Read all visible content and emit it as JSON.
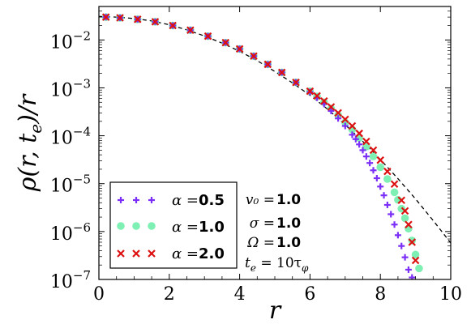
{
  "chart_data": {
    "type": "scatter",
    "title": "",
    "xlabel": "r",
    "ylabel": "ρ(r, t_e)/r",
    "xlim": [
      0,
      10
    ],
    "ylim": [
      1e-07,
      0.05
    ],
    "yscale": "log",
    "grid": false,
    "x_ticks": [
      "0",
      "2",
      "4",
      "6",
      "8",
      "10"
    ],
    "y_ticks": [
      {
        "base": "10",
        "exp": "−7"
      },
      {
        "base": "10",
        "exp": "−6"
      },
      {
        "base": "10",
        "exp": "−5"
      },
      {
        "base": "10",
        "exp": "−4"
      },
      {
        "base": "10",
        "exp": "−3"
      },
      {
        "base": "10",
        "exp": "−2"
      }
    ],
    "legend_position": "lower-left",
    "series": [
      {
        "name": "α =0.5",
        "alpha_symbol": "α =",
        "alpha_value": "0.5",
        "marker": "plus",
        "color": "#7b2ff7",
        "x": [
          0.2,
          0.6,
          1.1,
          1.6,
          2.1,
          2.6,
          3.1,
          3.6,
          4.0,
          4.4,
          4.8,
          5.2,
          5.6,
          6.0,
          6.2,
          6.4,
          6.6,
          6.8,
          7.0,
          7.2,
          7.3,
          7.4,
          7.5,
          7.6,
          7.7,
          7.8,
          7.9,
          8.0,
          8.1,
          8.2,
          8.3,
          8.4,
          8.5,
          8.6,
          8.7,
          8.8,
          8.9
        ],
        "y": [
          0.03,
          0.029,
          0.027,
          0.024,
          0.02,
          0.016,
          0.012,
          0.0088,
          0.0065,
          0.0046,
          0.0031,
          0.0021,
          0.0013,
          0.00082,
          0.00062,
          0.00046,
          0.00033,
          0.00023,
          0.00016,
          0.000105,
          8.5e-05,
          6.6e-05,
          5e-05,
          3.7e-05,
          2.7e-05,
          1.9e-05,
          1.3e-05,
          8.7e-06,
          5.7e-06,
          3.6e-06,
          2.3e-06,
          1.4e-06,
          8.4e-07,
          5e-07,
          2.9e-07,
          1.6e-07,
          1.1e-07
        ]
      },
      {
        "name": "α =1.0",
        "alpha_symbol": "α =",
        "alpha_value": "1.0",
        "marker": "circle",
        "color": "#7ef0b4",
        "x": [
          0.2,
          0.6,
          1.1,
          1.6,
          2.1,
          2.6,
          3.1,
          3.6,
          4.0,
          4.4,
          4.8,
          5.2,
          5.6,
          6.0,
          6.2,
          6.4,
          6.6,
          6.8,
          7.0,
          7.2,
          7.4,
          7.6,
          7.8,
          8.0,
          8.2,
          8.4,
          8.5,
          8.6,
          8.7,
          8.8,
          8.9,
          9.0,
          9.1
        ],
        "y": [
          0.03,
          0.029,
          0.027,
          0.024,
          0.02,
          0.016,
          0.012,
          0.0088,
          0.0065,
          0.0046,
          0.0031,
          0.0021,
          0.0013,
          0.00085,
          0.00066,
          0.0005,
          0.00037,
          0.00027,
          0.00019,
          0.000135,
          9e-05,
          5.9e-05,
          3.7e-05,
          2.2e-05,
          1.25e-05,
          6.6e-06,
          4.6e-06,
          3e-06,
          1.9e-06,
          1.15e-06,
          6.5e-07,
          3.3e-07,
          1.7e-07
        ]
      },
      {
        "name": "α =2.0",
        "alpha_symbol": "α =",
        "alpha_value": "2.0",
        "marker": "cross",
        "color": "#dd1111",
        "x": [
          0.2,
          0.6,
          1.1,
          1.6,
          2.1,
          2.6,
          3.1,
          3.6,
          4.0,
          4.4,
          4.8,
          5.2,
          5.6,
          6.0,
          6.2,
          6.4,
          6.6,
          6.8,
          7.0,
          7.2,
          7.4,
          7.6,
          7.8,
          8.0,
          8.2,
          8.4,
          8.6,
          8.7,
          8.8,
          8.9,
          9.0
        ],
        "y": [
          0.03,
          0.029,
          0.027,
          0.024,
          0.02,
          0.016,
          0.012,
          0.0088,
          0.0065,
          0.0046,
          0.0031,
          0.0021,
          0.0013,
          0.00085,
          0.00068,
          0.00053,
          0.0004,
          0.0003,
          0.00022,
          0.00016,
          0.000112,
          7.6e-05,
          5e-05,
          3.1e-05,
          1.8e-05,
          9.8e-06,
          4.5e-06,
          2.7e-06,
          1.4e-06,
          6e-07,
          2.5e-07
        ]
      }
    ],
    "reference_curve": {
      "style": "dashed",
      "color": "#000000",
      "x": [
        0.0,
        0.5,
        1.0,
        1.5,
        2.0,
        2.5,
        3.0,
        3.5,
        4.0,
        4.5,
        5.0,
        5.5,
        6.0,
        6.5,
        7.0,
        7.5,
        8.0,
        8.5,
        9.0,
        9.5,
        10.0
      ],
      "y": [
        0.031,
        0.03,
        0.028,
        0.025,
        0.0207,
        0.0162,
        0.0121,
        0.0086,
        0.0058,
        0.0037,
        0.0022,
        0.00127,
        0.0007,
        0.00036,
        0.00017,
        7.6e-05,
        3.2e-05,
        1.27e-05,
        4.8e-06,
        1.7e-06,
        5.8e-07
      ]
    },
    "annotations": [
      {
        "lhs": "v₀ =",
        "rhs": "1.0"
      },
      {
        "lhs": "σ =",
        "rhs": "1.0"
      },
      {
        "lhs": "Ω =",
        "rhs": "1.0"
      },
      {
        "lhs": "t",
        "sub": "e",
        "mid": " = 10τ",
        "sub2": "φ"
      }
    ]
  }
}
